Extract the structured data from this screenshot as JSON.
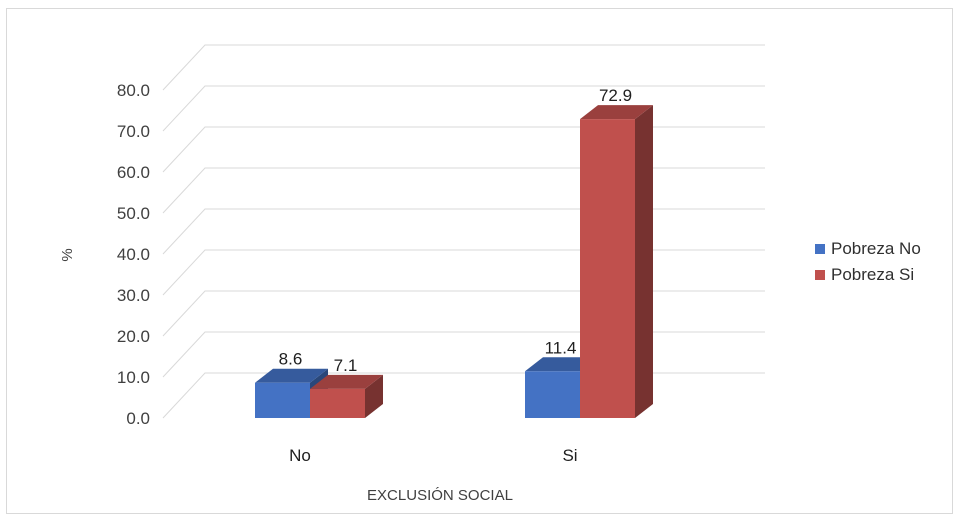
{
  "chart_data": {
    "type": "bar",
    "categories": [
      "No",
      "Si"
    ],
    "series": [
      {
        "name": "Pobreza No",
        "values": [
          8.6,
          11.4
        ],
        "color": "#4472C4"
      },
      {
        "name": "Pobreza Si",
        "values": [
          7.1,
          72.9
        ],
        "color": "#C0504D"
      }
    ],
    "y_ticks": [
      "0.0",
      "10.0",
      "20.0",
      "30.0",
      "40.0",
      "50.0",
      "60.0",
      "70.0",
      "80.0"
    ],
    "ylim": [
      0,
      80
    ],
    "ylabel": "%",
    "xlabel": "EXCLUSIÓN SOCIAL",
    "grid": true,
    "legend_position": "right",
    "style": "3d-clustered-column"
  }
}
